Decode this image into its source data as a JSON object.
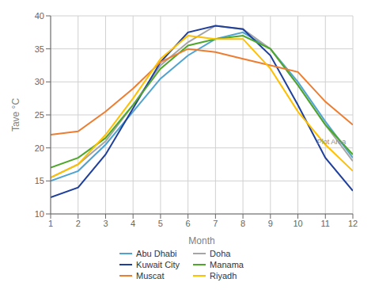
{
  "chart_data": {
    "type": "line",
    "xlabel": "Month",
    "ylabel": "Tave °C",
    "x": [
      1,
      2,
      3,
      4,
      5,
      6,
      7,
      8,
      9,
      10,
      11,
      12
    ],
    "series": [
      {
        "name": "Abu Dhabi",
        "color": "#4FA3D1",
        "values": [
          15.0,
          16.5,
          20.5,
          25.5,
          30.5,
          34.0,
          36.5,
          37.5,
          35.0,
          30.0,
          24.0,
          18.5
        ]
      },
      {
        "name": "Doha",
        "color": "#A5A5A5",
        "values": [
          15.5,
          17.5,
          21.0,
          26.5,
          32.5,
          36.0,
          38.5,
          38.0,
          35.0,
          29.5,
          23.5,
          18.0
        ]
      },
      {
        "name": "Kuwait City",
        "color": "#1F3F9C",
        "values": [
          12.5,
          14.0,
          19.0,
          26.0,
          33.0,
          37.5,
          38.5,
          38.0,
          34.0,
          26.5,
          18.5,
          13.5
        ]
      },
      {
        "name": "Manama",
        "color": "#4EA72A",
        "values": [
          17.0,
          18.5,
          21.5,
          26.5,
          32.0,
          35.5,
          36.5,
          37.0,
          35.0,
          29.5,
          23.5,
          19.0
        ]
      },
      {
        "name": "Muscat",
        "color": "#ED7D31",
        "values": [
          22.0,
          22.5,
          25.5,
          29.0,
          33.0,
          35.0,
          34.5,
          33.5,
          32.5,
          31.5,
          27.0,
          23.5
        ]
      },
      {
        "name": "Riyadh",
        "color": "#FFC000",
        "values": [
          15.5,
          17.5,
          22.0,
          27.5,
          33.5,
          37.0,
          36.5,
          36.5,
          32.0,
          25.5,
          20.5,
          16.5
        ]
      }
    ],
    "xlim": [
      1,
      12
    ],
    "ylim": [
      10,
      40
    ],
    "xticks": [
      1,
      2,
      3,
      4,
      5,
      6,
      7,
      8,
      9,
      10,
      11,
      12
    ],
    "yticks": [
      10,
      15,
      20,
      25,
      30,
      35,
      40
    ],
    "grid": true,
    "legend": "bottom",
    "annotations": [
      {
        "text": "Plot Area",
        "x": 10.55,
        "y": 21.0
      }
    ]
  }
}
